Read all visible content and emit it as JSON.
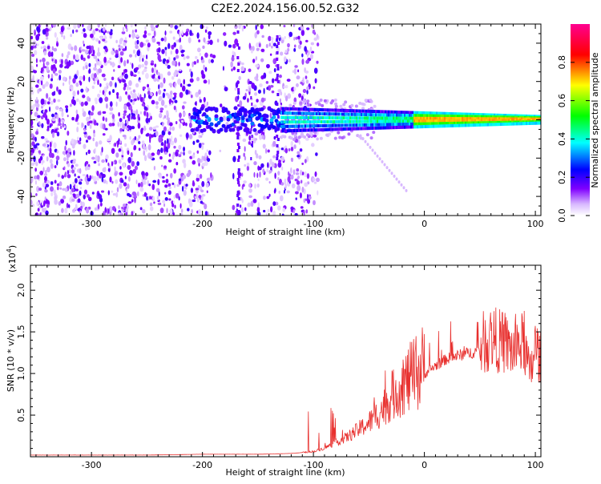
{
  "title": "C2E2.2024.156.00.52.G32",
  "chart_data": [
    {
      "type": "heatmap",
      "xlabel": "Height of straight line (km)",
      "ylabel": "Frequency (Hz)",
      "xlim": [
        -355,
        105
      ],
      "ylim": [
        -50,
        50
      ],
      "xticks": [
        -300,
        -200,
        -100,
        0,
        100
      ],
      "yticks": [
        -40,
        -20,
        0,
        20,
        40
      ],
      "xtick_labels": [
        "-300",
        "-200",
        "-100",
        "0",
        "100"
      ],
      "ytick_labels": [
        "-40",
        "-20",
        "0",
        "20",
        "40"
      ],
      "grid": false,
      "colorbar": {
        "label": "Normalized spectral amplitude",
        "range": [
          0,
          1
        ],
        "ticks": [
          0.0,
          0.2,
          0.4,
          0.6,
          0.8
        ],
        "tick_labels": [
          "0.0",
          "0.2",
          "0.4",
          "0.6",
          "0.8"
        ],
        "colors": [
          "#ffffff",
          "#8000ff",
          "#0000ff",
          "#00ffff",
          "#00ff00",
          "#ffff00",
          "#ff0000",
          "#ff00a0"
        ]
      },
      "features": {
        "noise_region_x": [
          -355,
          -110
        ],
        "signal_frequency_hz": 0,
        "signal_strong_from_x": -10
      }
    },
    {
      "type": "line",
      "xlabel": "Height of straight line (km)",
      "ylabel": "SNR (10 * v/v)",
      "scale_label": "(x10",
      "scale_exponent": "4",
      "scale_suffix": ")",
      "xlim": [
        -355,
        105
      ],
      "ylim": [
        0,
        2.3
      ],
      "xticks": [
        -300,
        -200,
        -100,
        0,
        100
      ],
      "yticks": [
        0.5,
        1.0,
        1.5,
        2.0
      ],
      "xtick_labels": [
        "-300",
        "-200",
        "-100",
        "0",
        "100"
      ],
      "ytick_labels": [
        "0.5",
        "1.0",
        "1.5",
        "2.0"
      ],
      "grid": false,
      "color": "#e8302e",
      "x": [
        -355,
        -300,
        -250,
        -200,
        -150,
        -120,
        -100,
        -90,
        -80,
        -70,
        -60,
        -50,
        -40,
        -30,
        -20,
        -10,
        0,
        10,
        20,
        30,
        40,
        50,
        60,
        70,
        80,
        90,
        95,
        100,
        105
      ],
      "y": [
        0.02,
        0.02,
        0.02,
        0.03,
        0.03,
        0.04,
        0.06,
        0.1,
        0.16,
        0.22,
        0.3,
        0.38,
        0.5,
        0.65,
        0.78,
        0.88,
        0.98,
        1.08,
        1.16,
        1.2,
        1.23,
        1.26,
        1.35,
        1.3,
        1.2,
        1.3,
        0.9,
        1.25,
        1.1
      ]
    }
  ]
}
